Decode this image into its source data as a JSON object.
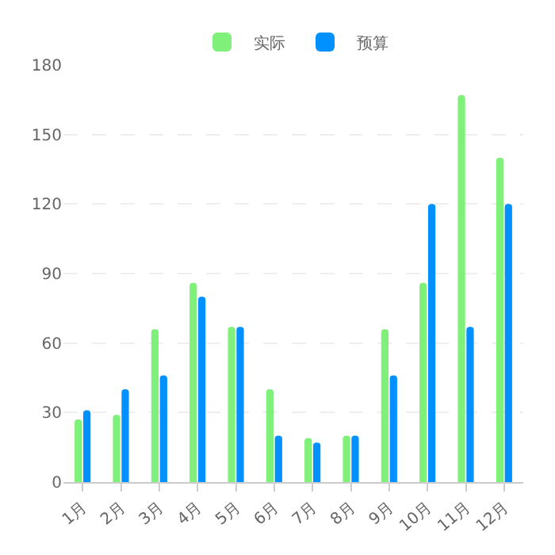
{
  "chart_data": {
    "type": "bar",
    "categories": [
      "1月",
      "2月",
      "3月",
      "4月",
      "5月",
      "6月",
      "7月",
      "8月",
      "9月",
      "10月",
      "11月",
      "12月"
    ],
    "series": [
      {
        "name": "实际",
        "color": "#7ff07a",
        "values": [
          27,
          29,
          66,
          86,
          67,
          40,
          19,
          20,
          66,
          86,
          167,
          140
        ]
      },
      {
        "name": "预算",
        "color": "#0091ff",
        "values": [
          31,
          40,
          46,
          80,
          67,
          20,
          17,
          20,
          46,
          120,
          67,
          120
        ]
      }
    ],
    "ylim": [
      0,
      180
    ],
    "yticks": [
      0,
      30,
      60,
      90,
      120,
      150,
      180
    ],
    "grid": "y",
    "legend": "top"
  }
}
